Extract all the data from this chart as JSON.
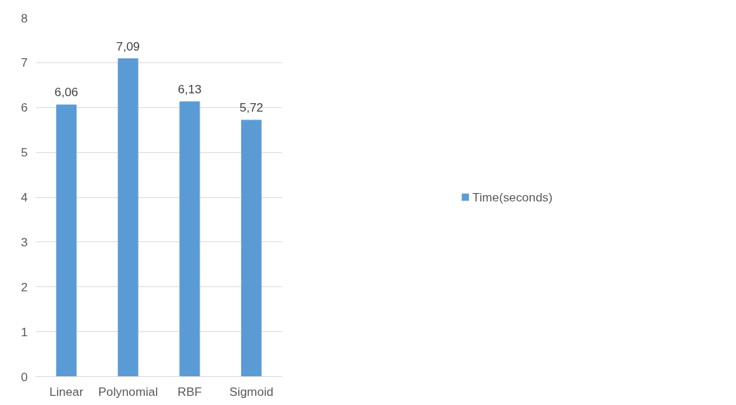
{
  "chart_data": {
    "type": "bar",
    "categories": [
      "Linear",
      "Polynomial",
      "RBF",
      "Sigmoid"
    ],
    "series": [
      {
        "name": "Time(seconds)",
        "color": "#5b9bd5",
        "values": [
          6.06,
          7.09,
          6.13,
          5.72
        ],
        "value_labels": [
          "6,06",
          "7,09",
          "6,13",
          "5,72"
        ]
      }
    ],
    "ylim": [
      0,
      8
    ],
    "yticks": [
      0,
      1,
      2,
      3,
      4,
      5,
      6,
      7,
      8
    ],
    "grid": "y",
    "legend": "right"
  }
}
